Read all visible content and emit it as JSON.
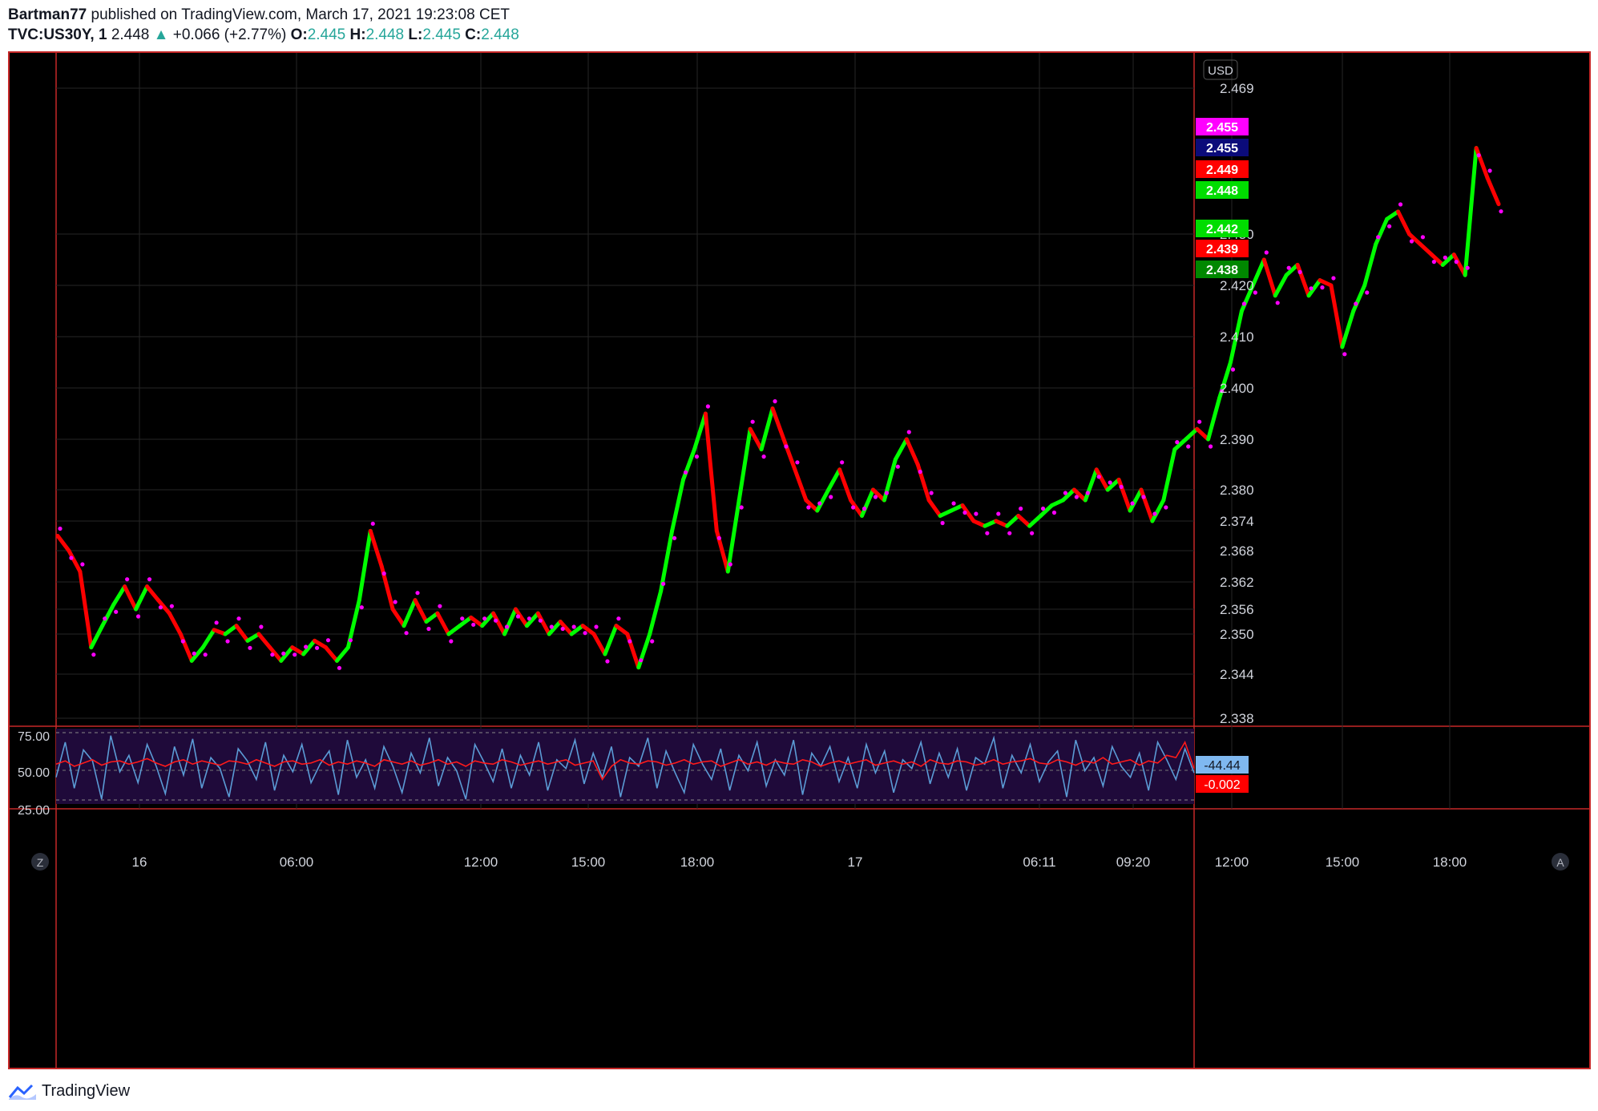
{
  "header": {
    "line1_user": "Bartman77",
    "line1_rest": " published on TradingView.com, March 17, 2021 19:23:08 CET",
    "symbol": "TVC:US30Y, 1",
    "price": "2.448",
    "change": "+0.066 (+2.77%)",
    "o_label": "O:",
    "o_val": "2.445",
    "h_label": "H:",
    "h_val": "2.448",
    "l_label": "L:",
    "l_val": "2.445",
    "c_label": "C:",
    "c_val": "2.448"
  },
  "footer": {
    "brand": "TradingView",
    "icon": "tradingview-logo-icon"
  },
  "currency": "USD",
  "axis_buttons": {
    "left": "Z",
    "right": "A"
  },
  "colors": {
    "up": "#00ff00",
    "down": "#ff0000",
    "dots": "#ff00ff",
    "osc_bg": "#1f0a3a",
    "osc_line": "#5b9bd5",
    "osc_red": "#ff1a1a",
    "frame": "#c62828"
  },
  "price_labels": [
    {
      "value": "2.455",
      "color": "#ff00ff"
    },
    {
      "value": "2.455",
      "color": "#0b0b7a"
    },
    {
      "value": "2.449",
      "color": "#ff0000"
    },
    {
      "value": "2.448",
      "color": "#00dd00"
    },
    {
      "value": "2.442",
      "color": "#00dd00"
    },
    {
      "value": "2.439",
      "color": "#ff0000"
    },
    {
      "value": "2.438",
      "color": "#008800"
    }
  ],
  "osc_labels": [
    {
      "value": "-44.44",
      "color": "#7fb8f0"
    },
    {
      "value": "-0.002",
      "color": "#ff0000"
    }
  ],
  "chart_data": [
    {
      "type": "line",
      "x_ticks": [
        "16",
        "06:00",
        "12:00",
        "15:00",
        "18:00",
        "17",
        "06:11",
        "09:20",
        "12:00",
        "15:00",
        "18:00"
      ],
      "y_ticks": [
        "2.338",
        "2.344",
        "2.350",
        "2.356",
        "2.362",
        "2.368",
        "2.374",
        "2.380",
        "2.390",
        "2.400",
        "2.410",
        "2.420",
        "2.430",
        "2.469"
      ],
      "ylim": [
        2.338,
        2.47
      ],
      "series": [
        {
          "values": [
            2.371,
            2.368,
            2.364,
            2.348,
            2.352,
            2.357,
            2.361,
            2.356,
            2.361,
            2.358,
            2.355,
            2.35,
            2.346,
            2.348,
            2.351,
            2.35,
            2.352,
            2.349,
            2.35,
            2.348,
            2.346,
            2.348,
            2.347,
            2.349,
            2.348,
            2.346,
            2.348,
            2.358,
            2.372,
            2.365,
            2.356,
            2.352,
            2.358,
            2.353,
            2.355,
            2.35,
            2.352,
            2.354,
            2.352,
            2.355,
            2.35,
            2.356,
            2.352,
            2.355,
            2.35,
            2.353,
            2.35,
            2.352,
            2.35,
            2.347,
            2.352,
            2.35,
            2.345,
            2.35,
            2.36,
            2.372,
            2.382,
            2.388,
            2.395,
            2.372,
            2.364,
            2.378,
            2.392,
            2.388,
            2.396,
            2.39,
            2.384,
            2.378,
            2.376,
            2.38,
            2.384,
            2.378,
            2.375,
            2.38,
            2.378,
            2.386,
            2.39,
            2.385,
            2.378,
            2.375,
            2.376,
            2.377,
            2.374,
            2.373,
            2.374,
            2.373,
            2.375,
            2.373,
            2.375,
            2.377,
            2.378,
            2.38,
            2.378,
            2.384,
            2.38,
            2.382,
            2.376,
            2.38,
            2.374,
            2.378,
            2.388,
            2.39,
            2.392,
            2.39,
            2.398,
            2.405,
            2.415,
            2.42,
            2.425,
            2.418,
            2.422,
            2.424,
            2.418,
            2.421,
            2.42,
            2.408,
            2.415,
            2.42,
            2.428,
            2.434,
            2.436,
            2.43,
            2.428,
            2.426,
            2.424,
            2.426,
            2.422,
            2.453,
            2.445,
            2.438
          ]
        },
        {
          "name_hidden": true,
          "values": [
            40,
            72,
            30,
            65,
            55,
            20,
            78,
            45,
            60,
            35,
            70,
            50,
            25,
            68,
            42,
            75,
            30,
            58,
            48,
            22,
            66,
            55,
            38,
            72,
            28,
            60,
            45,
            70,
            35,
            52,
            64,
            24,
            74,
            40,
            56,
            30,
            68,
            50,
            26,
            62,
            44,
            76,
            32,
            58,
            46,
            20,
            70,
            54,
            36,
            66,
            30,
            60,
            42,
            72,
            28,
            56,
            48,
            74,
            34,
            62,
            40,
            68,
            22,
            58,
            50,
            76,
            30,
            64,
            44,
            26,
            70,
            52,
            38,
            66,
            28,
            60,
            46,
            72,
            32,
            56,
            42,
            74,
            24,
            62,
            50,
            68,
            36,
            58,
            30,
            70,
            44,
            64,
            26,
            56,
            48,
            72,
            34,
            62,
            40,
            66,
            28,
            58,
            52,
            76,
            30,
            60,
            44,
            70,
            36,
            54,
            64,
            22,
            74,
            46,
            58,
            32,
            68,
            50,
            40,
            62,
            28,
            72,
            56,
            38,
            66,
            44
          ]
        },
        {
          "name_hidden": true,
          "values": [
            52,
            55,
            50,
            53,
            56,
            51,
            54,
            55,
            52,
            54,
            57,
            53,
            50,
            54,
            56,
            52,
            55,
            53,
            51,
            55,
            54,
            52,
            56,
            53,
            50,
            54,
            55,
            52,
            53,
            56,
            51,
            54,
            52,
            55,
            53,
            50,
            56,
            54,
            52,
            55,
            51,
            53,
            56,
            52,
            54,
            50,
            55,
            53,
            52,
            56,
            54,
            51,
            53,
            55,
            52,
            54,
            56,
            51,
            53,
            55,
            38,
            50,
            56,
            53,
            52,
            55,
            54,
            51,
            53,
            56,
            52,
            54,
            55,
            50,
            53,
            56,
            52,
            54,
            51,
            55,
            53,
            52,
            56,
            54,
            50,
            53,
            55,
            52,
            54,
            56,
            51,
            53,
            55,
            52,
            54,
            50,
            56,
            53,
            52,
            55,
            54,
            51,
            53,
            56,
            52,
            54,
            55,
            57,
            53,
            52,
            56,
            54,
            51,
            55,
            53,
            58,
            52,
            54,
            56,
            51,
            55,
            53,
            60,
            58,
            72,
            48
          ]
        }
      ]
    }
  ]
}
